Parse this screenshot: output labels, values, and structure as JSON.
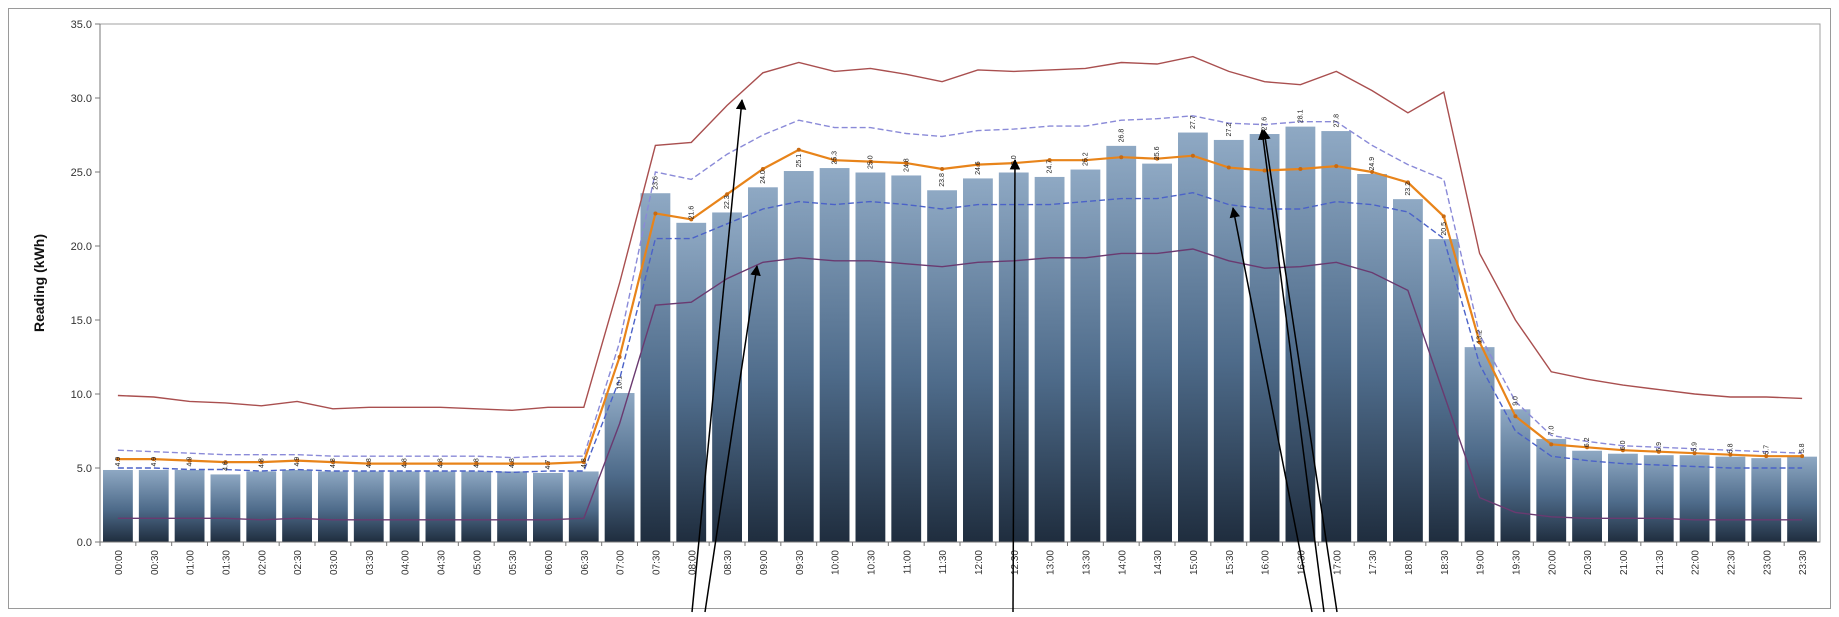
{
  "chart_data": {
    "type": "bar",
    "ylabel": "Reading (kWh)",
    "ylim": [
      0,
      35
    ],
    "yticks": [
      "0.0",
      "5.0",
      "10.0",
      "15.0",
      "20.0",
      "25.0",
      "30.0",
      "35.0"
    ],
    "grid": false,
    "legend": "none",
    "categories": [
      "00:00",
      "00:30",
      "01:00",
      "01:30",
      "02:00",
      "02:30",
      "03:00",
      "03:30",
      "04:00",
      "04:30",
      "05:00",
      "05:30",
      "06:00",
      "06:30",
      "07:00",
      "07:30",
      "08:00",
      "08:30",
      "09:00",
      "09:30",
      "10:00",
      "10:30",
      "11:00",
      "11:30",
      "12:00",
      "12:30",
      "13:00",
      "13:30",
      "14:00",
      "14:30",
      "15:00",
      "15:30",
      "16:00",
      "16:30",
      "17:00",
      "17:30",
      "18:00",
      "18:30",
      "19:00",
      "19:30",
      "20:00",
      "20:30",
      "21:00",
      "21:30",
      "22:00",
      "22:30",
      "23:00",
      "23:30"
    ],
    "bar_values": [
      4.9,
      4.9,
      4.9,
      4.6,
      4.8,
      4.9,
      4.8,
      4.8,
      4.8,
      4.8,
      4.8,
      4.8,
      4.7,
      4.8,
      10.1,
      23.6,
      21.6,
      22.3,
      24.0,
      25.1,
      25.3,
      25.0,
      24.8,
      23.8,
      24.6,
      25.0,
      24.7,
      25.2,
      26.8,
      25.6,
      27.7,
      27.2,
      27.6,
      28.1,
      27.8,
      24.9,
      23.2,
      20.5,
      13.2,
      9.0,
      7.0,
      6.2,
      6.0,
      5.9,
      5.9,
      5.8,
      5.7,
      5.8
    ],
    "data_labels": [
      "4.9",
      "4.9",
      "4.9",
      "4.6",
      "4.8",
      "4.9",
      "4.8",
      "4.8",
      "4.8",
      "4.8",
      "4.8",
      "4.8",
      "4.7",
      "4.8",
      "10.1",
      "23.6",
      "21.6",
      "22.3",
      "24.0",
      "25.1",
      "25.3",
      "25.0",
      "24.8",
      "23.8",
      "24.6",
      "25.0",
      "24.7",
      "25.2",
      "26.8",
      "25.6",
      "27.7",
      "27.2",
      "27.6",
      "28.1",
      "27.8",
      "24.9",
      "23.2",
      "20.5",
      "13.2",
      "9.0",
      "7.0",
      "6.2",
      "6.0",
      "5.9",
      "5.9",
      "5.8",
      "5.7",
      "5.8"
    ],
    "lines": [
      {
        "color": "#a94f4f",
        "style": "solid",
        "values": [
          9.9,
          9.8,
          9.5,
          9.4,
          9.2,
          9.5,
          9.0,
          9.1,
          9.1,
          9.1,
          9.0,
          8.9,
          9.1,
          9.1,
          17.5,
          26.8,
          27.0,
          29.5,
          31.7,
          32.4,
          31.8,
          32.0,
          31.6,
          31.1,
          31.9,
          31.8,
          31.9,
          32.0,
          32.4,
          32.3,
          32.8,
          31.8,
          31.1,
          30.9,
          31.8,
          30.5,
          29.0,
          30.4,
          19.5,
          15.0,
          11.5,
          11.0,
          10.6,
          10.3,
          10.0,
          9.8,
          9.8,
          9.7
        ]
      },
      {
        "color": "#8a8ad8",
        "style": "dashed",
        "values": [
          6.2,
          6.1,
          6.0,
          5.9,
          5.9,
          5.9,
          5.8,
          5.8,
          5.8,
          5.8,
          5.8,
          5.7,
          5.8,
          5.8,
          13.5,
          25.0,
          24.5,
          26.2,
          27.5,
          28.5,
          28.0,
          28.0,
          27.6,
          27.4,
          27.8,
          27.9,
          28.1,
          28.1,
          28.5,
          28.6,
          28.8,
          28.3,
          28.2,
          28.4,
          28.4,
          26.8,
          25.5,
          24.5,
          14.0,
          9.5,
          7.2,
          6.8,
          6.5,
          6.4,
          6.3,
          6.2,
          6.1,
          6.0
        ]
      },
      {
        "color": "#e8841a",
        "style": "solid",
        "values": [
          5.6,
          5.6,
          5.5,
          5.4,
          5.4,
          5.5,
          5.4,
          5.3,
          5.3,
          5.3,
          5.3,
          5.3,
          5.3,
          5.4,
          12.5,
          22.2,
          21.8,
          23.5,
          25.2,
          26.5,
          25.8,
          25.7,
          25.6,
          25.2,
          25.5,
          25.6,
          25.8,
          25.8,
          26.0,
          25.9,
          26.1,
          25.3,
          25.1,
          25.2,
          25.4,
          25.0,
          24.3,
          22.0,
          13.5,
          8.5,
          6.6,
          6.4,
          6.2,
          6.1,
          6.0,
          5.9,
          5.8,
          5.8
        ]
      },
      {
        "color": "#4b62c8",
        "style": "dashed",
        "values": [
          5.0,
          5.0,
          4.9,
          4.9,
          4.8,
          4.9,
          4.8,
          4.8,
          4.8,
          4.8,
          4.8,
          4.7,
          4.8,
          4.8,
          11.0,
          20.5,
          20.5,
          21.5,
          22.5,
          23.0,
          22.8,
          23.0,
          22.8,
          22.5,
          22.8,
          22.8,
          22.8,
          23.0,
          23.2,
          23.2,
          23.6,
          22.8,
          22.5,
          22.5,
          23.0,
          22.8,
          22.3,
          20.5,
          12.0,
          7.5,
          5.8,
          5.5,
          5.3,
          5.2,
          5.1,
          5.0,
          5.0,
          5.0
        ]
      },
      {
        "color": "#6a3a70",
        "style": "solid",
        "values": [
          1.6,
          1.6,
          1.6,
          1.6,
          1.5,
          1.6,
          1.5,
          1.5,
          1.5,
          1.5,
          1.5,
          1.5,
          1.5,
          1.6,
          8.0,
          16.0,
          16.2,
          17.8,
          18.9,
          19.2,
          19.0,
          19.0,
          18.8,
          18.6,
          18.9,
          19.0,
          19.2,
          19.2,
          19.5,
          19.5,
          19.8,
          19.0,
          18.5,
          18.6,
          18.9,
          18.2,
          17.0,
          10.0,
          3.0,
          2.0,
          1.7,
          1.6,
          1.6,
          1.6,
          1.5,
          1.5,
          1.5,
          1.5
        ]
      }
    ],
    "annotations": {
      "arrow_count": 6
    }
  }
}
